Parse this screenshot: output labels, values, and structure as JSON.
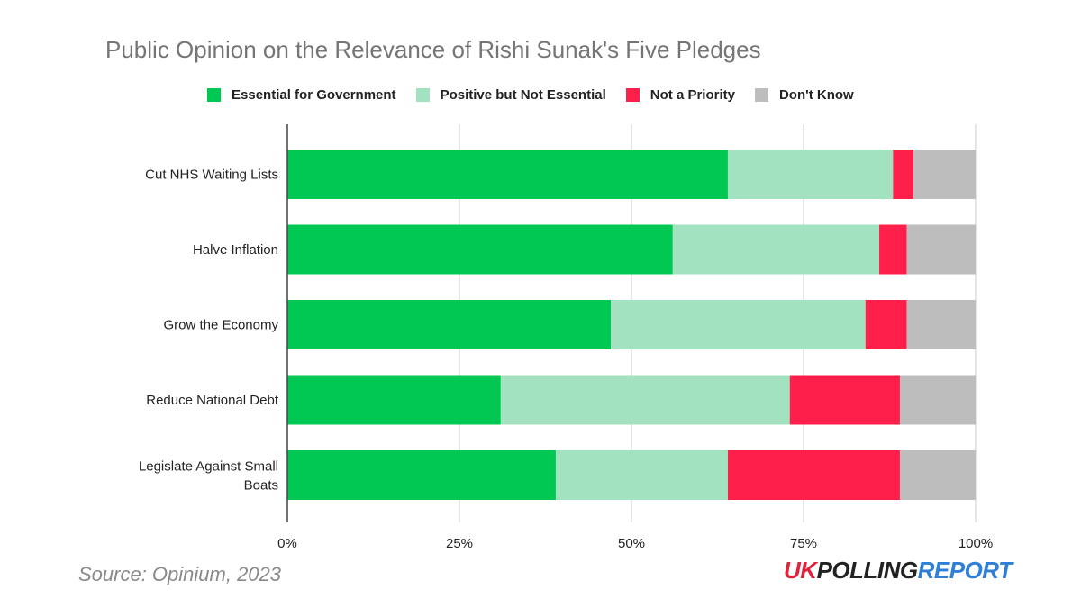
{
  "chart_data": {
    "type": "bar",
    "orientation": "horizontal",
    "stacked": true,
    "title": "Public Opinion on the Relevance of Rishi Sunak's Five Pledges",
    "categories": [
      "Cut NHS Waiting Lists",
      "Halve Inflation",
      "Grow the Economy",
      "Reduce National Debt",
      "Legislate Against Small Boats"
    ],
    "series": [
      {
        "name": "Essential for Government",
        "color": "#00c853",
        "values": [
          64,
          56,
          47,
          31,
          39
        ]
      },
      {
        "name": "Positive but Not Essential",
        "color": "#a2e2c0",
        "values": [
          24,
          30,
          37,
          42,
          25
        ]
      },
      {
        "name": "Not a Priority",
        "color": "#ff1f4b",
        "values": [
          3,
          4,
          6,
          16,
          25
        ]
      },
      {
        "name": "Don't Know",
        "color": "#bdbdbd",
        "values": [
          9,
          10,
          10,
          11,
          11
        ]
      }
    ],
    "xlim": [
      0,
      100
    ],
    "xticks": [
      "0%",
      "25%",
      "50%",
      "75%",
      "100%"
    ],
    "grid": true,
    "legend": "top"
  },
  "source": "Source: Opinium, 2023",
  "logo": {
    "uk": "UK",
    "polling": "POLLING",
    "report": "REPORT"
  }
}
